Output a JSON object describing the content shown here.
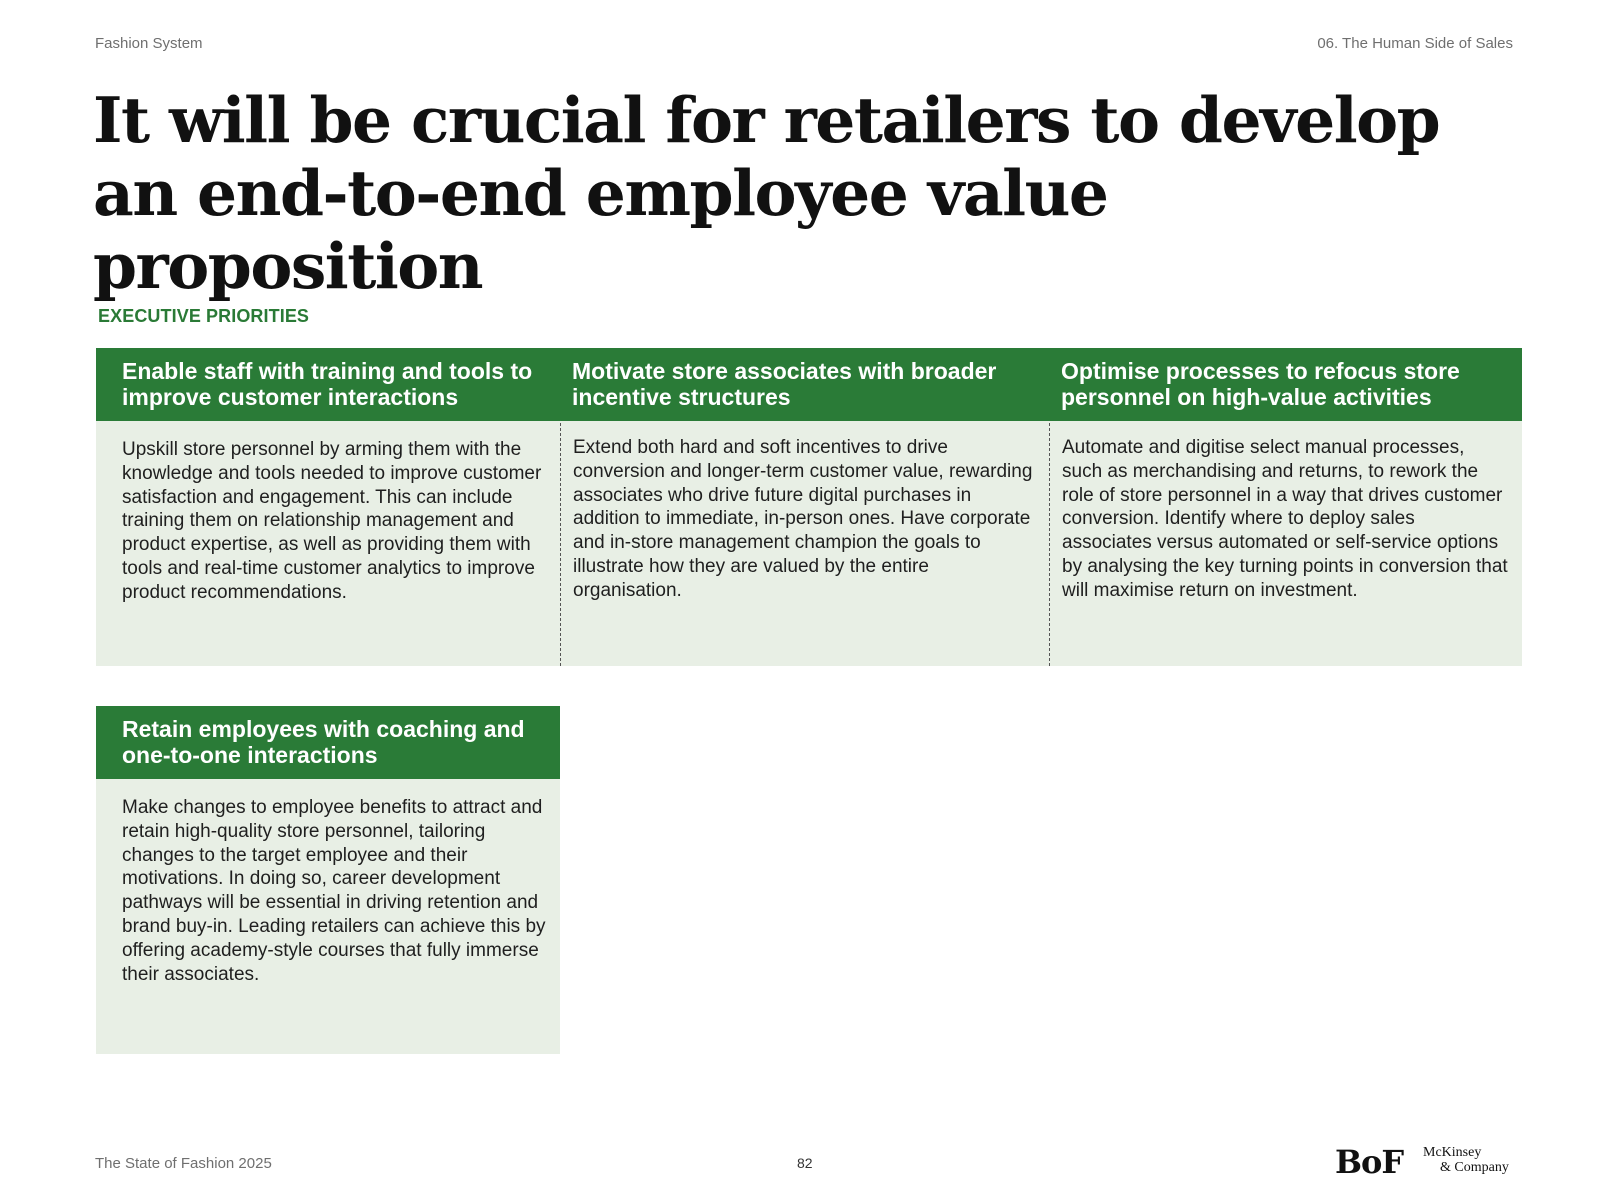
{
  "header": {
    "left": "Fashion System",
    "right": "06. The Human Side of Sales"
  },
  "title": "It will be crucial for retailers to develop an end-to-end employee value proposition",
  "section_label": "EXECUTIVE PRIORITIES",
  "cards": [
    {
      "heading": "Enable staff with training and tools to improve customer interactions",
      "body": "Upskill store personnel by arming them with the knowledge and tools needed to improve customer satisfaction and engagement. This can include training them on relationship management and product expertise, as well as providing them with tools and real-time customer analytics to improve product recommendations."
    },
    {
      "heading": "Motivate store associates with broader incentive structures",
      "body": "Extend both hard and soft incentives to drive conversion and longer-term customer value, rewarding associates who drive future digital purchases in addition to immediate, in-person ones. Have corporate and in-store management champion the goals to illustrate how they are valued by the entire organisation."
    },
    {
      "heading": "Optimise processes to refocus store personnel on high-value activities",
      "body": "Automate and digitise select manual processes, such as merchandising and returns, to rework the role of store personnel in a way that drives customer conversion. Identify where to deploy sales associates versus automated or self-service options by analysing the key turning points in conversion that will maximise return on investment."
    },
    {
      "heading": "Retain employees with coaching and one-to-one interactions",
      "body": "Make changes to employee benefits to attract and retain high-quality store personnel, tailoring changes to the target employee and their motivations. In doing so, career development pathways will be essential in driving retention and brand buy-in. Leading retailers can achieve this by offering academy-style courses that fully immerse their associates."
    }
  ],
  "footer": {
    "publication": "The State of Fashion 2025",
    "page_number": "82",
    "logo_bof": "BoF",
    "logo_mckinsey_line1": "McKinsey",
    "logo_mckinsey_line2": "& Company"
  },
  "colors": {
    "accent_green": "#2a7b37",
    "card_background": "#e8efe5"
  }
}
